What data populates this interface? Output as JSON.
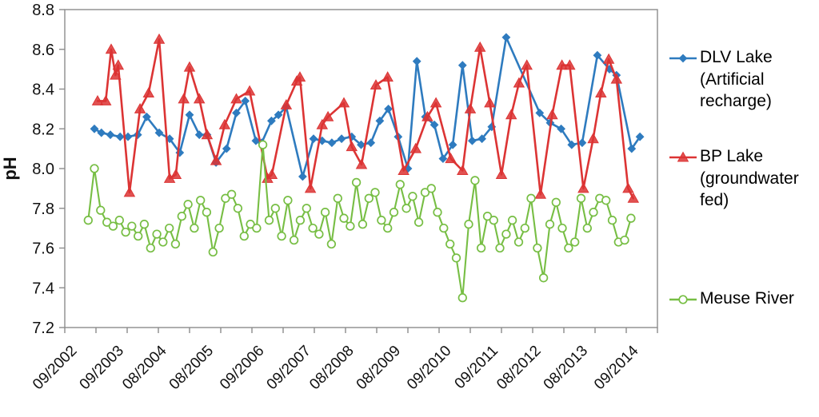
{
  "chart_data": {
    "type": "line",
    "title": "",
    "ylabel": "pH",
    "ylim": [
      7.2,
      8.8
    ],
    "ytick_step": 0.2,
    "ytick_labels": [
      "7.2",
      "7.4",
      "7.6",
      "7.8",
      "8.0",
      "8.2",
      "8.4",
      "8.6",
      "8.8"
    ],
    "grid": false,
    "legend_position": "right",
    "axis_color": "#8C8C8C",
    "x_axis": {
      "unit": "months since 09/2002",
      "range": [
        0,
        152
      ],
      "tick_interval_months": 8,
      "labels": [
        {
          "text": "09/2002",
          "month": 0
        },
        {
          "text": "09/2003",
          "month": 12
        },
        {
          "text": "08/2004",
          "month": 23
        },
        {
          "text": "08/2005",
          "month": 35
        },
        {
          "text": "09/2006",
          "month": 48
        },
        {
          "text": "09/2007",
          "month": 60
        },
        {
          "text": "08/2008",
          "month": 71
        },
        {
          "text": "08/2009",
          "month": 83
        },
        {
          "text": "09/2010",
          "month": 96
        },
        {
          "text": "09/2011",
          "month": 108
        },
        {
          "text": "08/2012",
          "month": 119
        },
        {
          "text": "08/2013",
          "month": 131
        },
        {
          "text": "09/2014",
          "month": 144
        }
      ]
    },
    "series": [
      {
        "name": "DLV Lake (Artificial recharge)",
        "color": "#2E7BBF",
        "marker": "diamond",
        "line_width": 2.6,
        "points": [
          [
            7.6,
            8.2
          ],
          [
            9.4,
            8.18
          ],
          [
            11.7,
            8.17
          ],
          [
            14.2,
            8.16
          ],
          [
            16.2,
            8.16
          ],
          [
            18.7,
            8.17
          ],
          [
            21,
            8.26
          ],
          [
            24.2,
            8.18
          ],
          [
            26.9,
            8.15
          ],
          [
            29.5,
            8.08
          ],
          [
            32,
            8.27
          ],
          [
            34.5,
            8.17
          ],
          [
            36.5,
            8.17
          ],
          [
            38.8,
            8.03
          ],
          [
            41.5,
            8.1
          ],
          [
            44,
            8.28
          ],
          [
            46.3,
            8.34
          ],
          [
            49,
            8.14
          ],
          [
            50.5,
            8.13
          ],
          [
            53,
            8.24
          ],
          [
            54.8,
            8.27
          ],
          [
            56.8,
            8.31
          ],
          [
            61,
            7.96
          ],
          [
            63.8,
            8.15
          ],
          [
            66,
            8.14
          ],
          [
            68.5,
            8.13
          ],
          [
            71,
            8.15
          ],
          [
            73.6,
            8.16
          ],
          [
            76,
            8.12
          ],
          [
            78.5,
            8.13
          ],
          [
            80.8,
            8.24
          ],
          [
            83,
            8.3
          ],
          [
            85.5,
            8.16
          ],
          [
            88,
            8.0
          ],
          [
            90.3,
            8.54
          ],
          [
            92.5,
            8.26
          ],
          [
            94.8,
            8.22
          ],
          [
            97,
            8.05
          ],
          [
            99.5,
            8.12
          ],
          [
            102,
            8.52
          ],
          [
            104.5,
            8.14
          ],
          [
            107,
            8.15
          ],
          [
            109.5,
            8.21
          ],
          [
            113.2,
            8.66
          ],
          [
            121.8,
            8.28
          ],
          [
            124.5,
            8.23
          ],
          [
            127.3,
            8.2
          ],
          [
            130,
            8.12
          ],
          [
            132.7,
            8.13
          ],
          [
            136.6,
            8.57
          ],
          [
            139.7,
            8.5
          ],
          [
            141.5,
            8.47
          ],
          [
            145.4,
            8.1
          ],
          [
            147.5,
            8.16
          ]
        ]
      },
      {
        "name": "BP Lake (groundwater fed)",
        "color": "#DC3434",
        "marker": "triangle",
        "line_width": 2.6,
        "points": [
          [
            8.4,
            8.34
          ],
          [
            10.5,
            8.34
          ],
          [
            11.9,
            8.6
          ],
          [
            13,
            8.47
          ],
          [
            13.7,
            8.52
          ],
          [
            16.6,
            7.88
          ],
          [
            19.3,
            8.3
          ],
          [
            21.5,
            8.38
          ],
          [
            24.2,
            8.65
          ],
          [
            26.9,
            7.95
          ],
          [
            28.5,
            7.97
          ],
          [
            30.5,
            8.35
          ],
          [
            32,
            8.51
          ],
          [
            34.5,
            8.35
          ],
          [
            36.5,
            8.17
          ],
          [
            38.8,
            8.04
          ],
          [
            41,
            8.22
          ],
          [
            44,
            8.35
          ],
          [
            47.4,
            8.39
          ],
          [
            52,
            7.95
          ],
          [
            53.1,
            7.97
          ],
          [
            56.8,
            8.32
          ],
          [
            59.5,
            8.44
          ],
          [
            60.3,
            8.46
          ],
          [
            63,
            7.9
          ],
          [
            66,
            8.22
          ],
          [
            67.5,
            8.26
          ],
          [
            71.6,
            8.33
          ],
          [
            73.6,
            8.11
          ],
          [
            76.1,
            8.02
          ],
          [
            79.8,
            8.42
          ],
          [
            82.8,
            8.46
          ],
          [
            86.9,
            7.99
          ],
          [
            90,
            8.1
          ],
          [
            93,
            8.26
          ],
          [
            95.2,
            8.33
          ],
          [
            99,
            8.05
          ],
          [
            102,
            7.99
          ],
          [
            104,
            8.3
          ],
          [
            106.5,
            8.61
          ],
          [
            109,
            8.33
          ],
          [
            112,
            7.97
          ],
          [
            114.5,
            8.27
          ],
          [
            116.5,
            8.43
          ],
          [
            118.5,
            8.52
          ],
          [
            122,
            7.87
          ],
          [
            125,
            8.27
          ],
          [
            127.5,
            8.52
          ],
          [
            129.5,
            8.52
          ],
          [
            133,
            7.9
          ],
          [
            135.5,
            8.15
          ],
          [
            137.5,
            8.38
          ],
          [
            139.5,
            8.55
          ],
          [
            141.5,
            8.45
          ],
          [
            144.5,
            7.9
          ],
          [
            145.8,
            7.85
          ]
        ]
      },
      {
        "name": "Meuse River",
        "color": "#77BE44",
        "marker": "open-circle",
        "line_width": 2.1,
        "points": [
          [
            6.0,
            7.74
          ],
          [
            7.6,
            8.0
          ],
          [
            9.2,
            7.79
          ],
          [
            10.8,
            7.73
          ],
          [
            12.4,
            7.71
          ],
          [
            14.0,
            7.74
          ],
          [
            15.6,
            7.68
          ],
          [
            17.2,
            7.71
          ],
          [
            18.8,
            7.66
          ],
          [
            20.4,
            7.72
          ],
          [
            22.0,
            7.6
          ],
          [
            23.6,
            7.67
          ],
          [
            25.2,
            7.63
          ],
          [
            26.8,
            7.7
          ],
          [
            28.4,
            7.62
          ],
          [
            30.0,
            7.76
          ],
          [
            31.6,
            7.82
          ],
          [
            33.2,
            7.7
          ],
          [
            34.8,
            7.84
          ],
          [
            36.4,
            7.78
          ],
          [
            38.0,
            7.58
          ],
          [
            39.6,
            7.7
          ],
          [
            41.2,
            7.85
          ],
          [
            42.8,
            7.87
          ],
          [
            44.4,
            7.8
          ],
          [
            46.0,
            7.66
          ],
          [
            47.6,
            7.72
          ],
          [
            49.2,
            7.7
          ],
          [
            50.8,
            8.12
          ],
          [
            52.4,
            7.74
          ],
          [
            54.0,
            7.8
          ],
          [
            55.6,
            7.66
          ],
          [
            57.2,
            7.84
          ],
          [
            58.8,
            7.64
          ],
          [
            60.4,
            7.74
          ],
          [
            62.0,
            7.8
          ],
          [
            63.6,
            7.7
          ],
          [
            65.2,
            7.67
          ],
          [
            66.8,
            7.78
          ],
          [
            68.4,
            7.62
          ],
          [
            70.0,
            7.85
          ],
          [
            71.6,
            7.75
          ],
          [
            73.2,
            7.71
          ],
          [
            74.8,
            7.93
          ],
          [
            76.4,
            7.72
          ],
          [
            78.0,
            7.85
          ],
          [
            79.6,
            7.88
          ],
          [
            81.2,
            7.74
          ],
          [
            82.8,
            7.7
          ],
          [
            84.4,
            7.78
          ],
          [
            86.0,
            7.92
          ],
          [
            87.6,
            7.8
          ],
          [
            89.2,
            7.86
          ],
          [
            90.8,
            7.73
          ],
          [
            92.4,
            7.88
          ],
          [
            94.0,
            7.9
          ],
          [
            95.6,
            7.78
          ],
          [
            97.2,
            7.7
          ],
          [
            98.8,
            7.62
          ],
          [
            100.4,
            7.55
          ],
          [
            102.0,
            7.35
          ],
          [
            103.6,
            7.72
          ],
          [
            105.2,
            7.94
          ],
          [
            106.8,
            7.6
          ],
          [
            108.4,
            7.76
          ],
          [
            110.0,
            7.74
          ],
          [
            111.6,
            7.6
          ],
          [
            113.2,
            7.67
          ],
          [
            114.8,
            7.74
          ],
          [
            116.4,
            7.63
          ],
          [
            118.0,
            7.7
          ],
          [
            119.6,
            7.85
          ],
          [
            121.2,
            7.6
          ],
          [
            122.8,
            7.45
          ],
          [
            124.4,
            7.72
          ],
          [
            126.0,
            7.83
          ],
          [
            127.6,
            7.7
          ],
          [
            129.2,
            7.6
          ],
          [
            130.8,
            7.63
          ],
          [
            132.4,
            7.85
          ],
          [
            134.0,
            7.7
          ],
          [
            135.6,
            7.78
          ],
          [
            137.2,
            7.85
          ],
          [
            138.8,
            7.84
          ],
          [
            140.4,
            7.74
          ],
          [
            142.0,
            7.63
          ],
          [
            143.6,
            7.64
          ],
          [
            145.2,
            7.75
          ]
        ]
      }
    ]
  }
}
